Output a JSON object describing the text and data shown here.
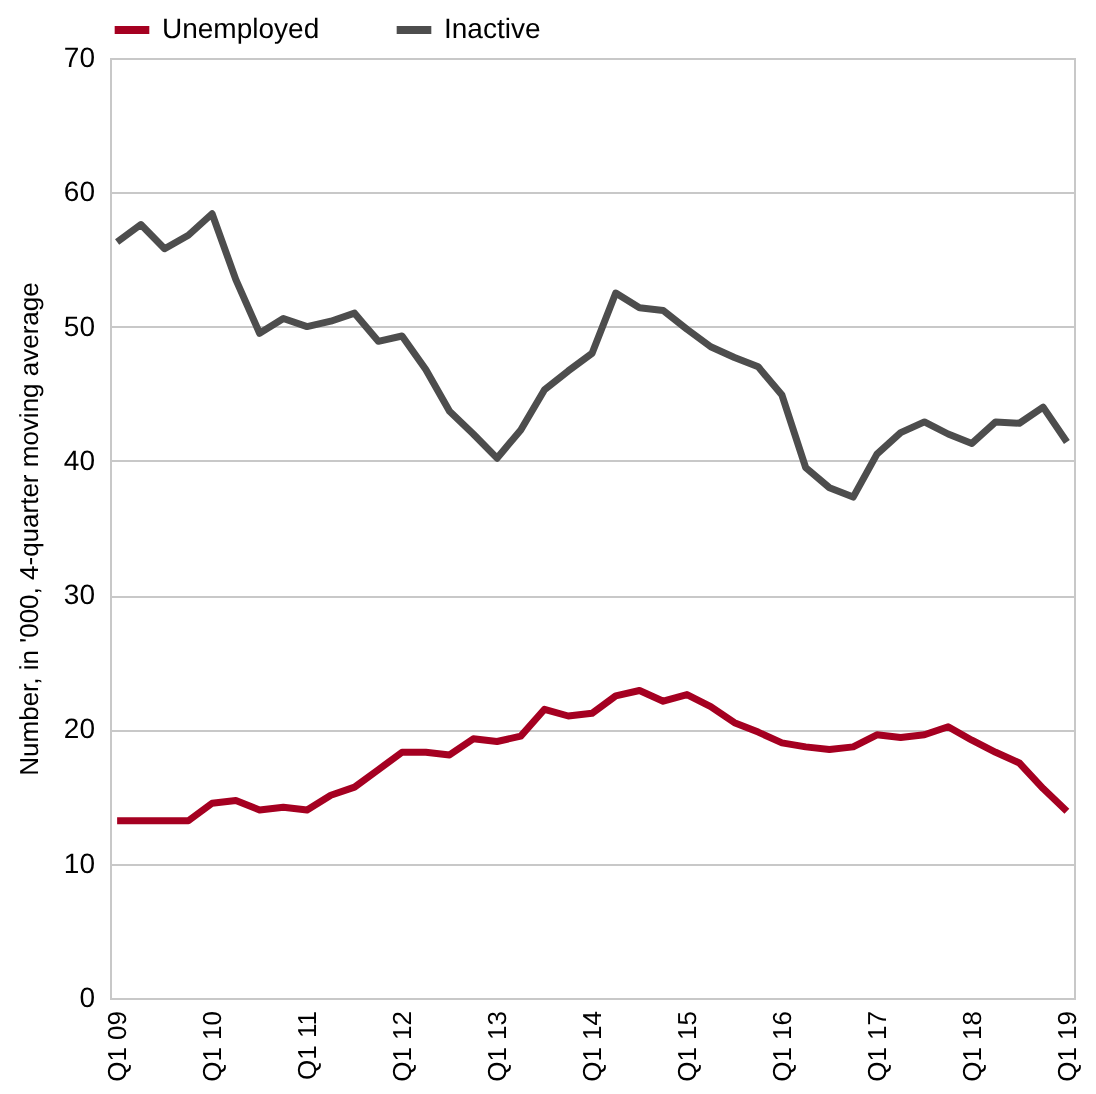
{
  "chart_data": {
    "type": "line",
    "ylabel": "Number, in '000, 4-quarter moving average",
    "categories": [
      "Q1 09",
      null,
      null,
      null,
      "Q1 10",
      null,
      null,
      null,
      "Q1 11",
      null,
      null,
      null,
      "Q1 12",
      null,
      null,
      null,
      "Q1 13",
      null,
      null,
      null,
      "Q1 14",
      null,
      null,
      null,
      "Q1 15",
      null,
      null,
      null,
      "Q1 16",
      null,
      null,
      null,
      "Q1 17",
      null,
      null,
      null,
      "Q1 18",
      null,
      null,
      null,
      "Q1 19"
    ],
    "series": [
      {
        "name": "Unemployed",
        "color": "#a50021",
        "values": [
          13.2,
          13.2,
          13.2,
          13.2,
          14.5,
          14.7,
          14.0,
          14.2,
          14.0,
          15.1,
          15.7,
          17.0,
          18.3,
          18.3,
          18.1,
          19.3,
          19.1,
          19.5,
          21.5,
          21.0,
          21.2,
          22.5,
          22.9,
          22.1,
          22.6,
          21.7,
          20.5,
          19.8,
          19.0,
          18.7,
          18.5,
          18.7,
          19.6,
          19.4,
          19.6,
          20.2,
          19.2,
          18.3,
          17.5,
          15.6,
          13.9
        ]
      },
      {
        "name": "Inactive",
        "color": "#4d4d4d",
        "values": [
          56.3,
          57.6,
          55.8,
          56.8,
          58.4,
          53.5,
          49.5,
          50.6,
          50.0,
          50.4,
          51.0,
          48.9,
          49.3,
          46.8,
          43.7,
          42.0,
          40.2,
          42.3,
          45.3,
          46.7,
          48.0,
          52.5,
          51.4,
          51.2,
          49.8,
          48.5,
          47.7,
          47.0,
          44.9,
          39.5,
          38.0,
          37.3,
          40.5,
          42.1,
          42.9,
          42.0,
          41.3,
          42.9,
          42.8,
          44.0,
          41.4
        ]
      }
    ],
    "ylim": [
      0,
      70
    ],
    "yticks": [
      0,
      10,
      20,
      30,
      40,
      50,
      60,
      70
    ],
    "grid": "y",
    "legend": "top left",
    "marker": "none",
    "line_style": "solid"
  }
}
